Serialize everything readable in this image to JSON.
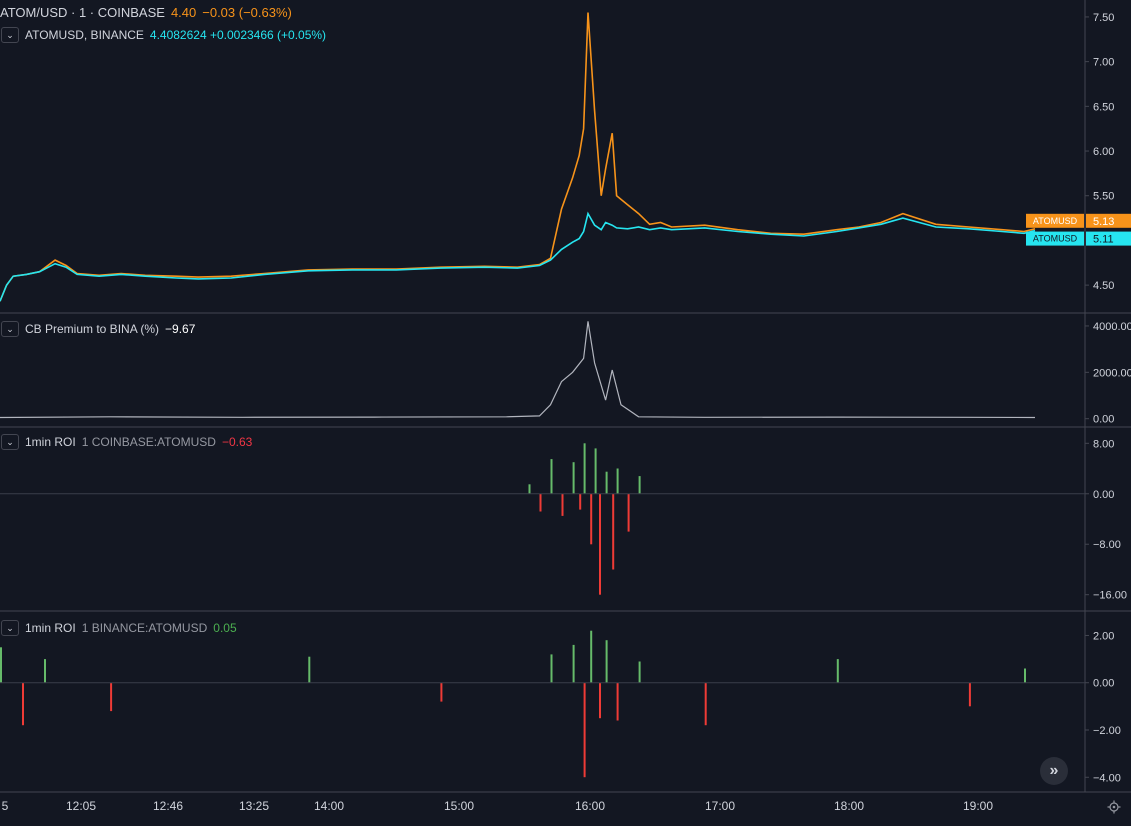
{
  "main_pane": {
    "symbol_title": "ATOM/USD · 1 · COINBASE",
    "last_price": "4.40",
    "change": "−0.03 (−0.63%)",
    "compare_label": "ATOMUSD, BINANCE",
    "compare_values": "4.4082624 +0.0023466 (+0.05%)",
    "price_tag_coinbase": "ATOMUSD",
    "price_tag_coinbase_value": "5.13",
    "price_tag_binance": "ATOMUSD",
    "price_tag_binance_value": "5.11",
    "y_ticks": [
      "7.50",
      "7.00",
      "6.50",
      "6.00",
      "5.50",
      "4.50"
    ]
  },
  "premium_pane": {
    "label": "CB Premium to BINA (%)",
    "value": "−9.67",
    "y_ticks": [
      "4000.00",
      "2000.00",
      "0.00"
    ]
  },
  "roi_coinbase_pane": {
    "label": "1min ROI",
    "source": "1 COINBASE:ATOMUSD",
    "value": "−0.63",
    "y_ticks": [
      "8.00",
      "0.00",
      "−8.00",
      "−16.00"
    ]
  },
  "roi_binance_pane": {
    "label": "1min ROI",
    "source": "1 BINANCE:ATOMUSD",
    "value": "0.05",
    "y_ticks": [
      "2.00",
      "0.00",
      "−2.00",
      "−4.00"
    ]
  },
  "time_axis": {
    "labels": [
      "5",
      "12:05",
      "12:46",
      "13:25",
      "14:00",
      "15:00",
      "16:00",
      "17:00",
      "18:00",
      "19:00"
    ]
  },
  "colors": {
    "background": "#131722",
    "coinbase_line": "#f7931a",
    "binance_line": "#26e5f0",
    "premium_line": "#b2b5be",
    "roi_up": "#66bb6a",
    "roi_down": "#ef3b36",
    "pane_border": "#434651",
    "text": "#d1d4dc",
    "muted_text": "#9598a1",
    "positive_text": "#4caf50",
    "negative_text": "#f23645"
  },
  "chart_data": [
    {
      "type": "line",
      "x": [
        "11:40",
        "11:43",
        "11:46",
        "11:52",
        "11:58",
        "12:05",
        "12:10",
        "12:15",
        "12:25",
        "12:35",
        "12:46",
        "13:00",
        "13:10",
        "13:25",
        "13:40",
        "14:00",
        "14:20",
        "14:40",
        "15:00",
        "15:20",
        "15:35",
        "15:45",
        "15:50",
        "15:55",
        "16:00",
        "16:03",
        "16:05",
        "16:07",
        "16:10",
        "16:13",
        "16:15",
        "16:18",
        "16:20",
        "16:25",
        "16:30",
        "16:35",
        "16:40",
        "16:45",
        "17:00",
        "17:15",
        "17:30",
        "17:45",
        "18:00",
        "18:10",
        "18:20",
        "18:30",
        "18:45",
        "19:00",
        "19:15",
        "19:25",
        "19:30"
      ],
      "ylim": [
        4.3,
        7.6
      ],
      "series": [
        {
          "name": "ATOMUSD",
          "values": [
            4.32,
            4.5,
            4.6,
            4.62,
            4.65,
            4.78,
            4.72,
            4.63,
            4.61,
            4.63,
            4.61,
            4.6,
            4.59,
            4.6,
            4.63,
            4.67,
            4.68,
            4.68,
            4.7,
            4.71,
            4.7,
            4.73,
            4.8,
            5.35,
            5.7,
            5.95,
            6.25,
            7.55,
            6.45,
            5.5,
            5.8,
            6.2,
            5.5,
            5.4,
            5.3,
            5.18,
            5.2,
            5.15,
            5.17,
            5.12,
            5.08,
            5.07,
            5.12,
            5.15,
            5.2,
            5.3,
            5.18,
            5.15,
            5.12,
            5.1,
            5.13
          ]
        },
        {
          "name": "ATOMUSD",
          "values": [
            4.32,
            4.5,
            4.6,
            4.62,
            4.65,
            4.74,
            4.7,
            4.62,
            4.6,
            4.62,
            4.6,
            4.58,
            4.57,
            4.58,
            4.62,
            4.66,
            4.67,
            4.67,
            4.69,
            4.7,
            4.69,
            4.72,
            4.78,
            4.9,
            4.98,
            5.02,
            5.1,
            5.3,
            5.17,
            5.12,
            5.2,
            5.17,
            5.14,
            5.13,
            5.15,
            5.12,
            5.14,
            5.12,
            5.14,
            5.1,
            5.07,
            5.05,
            5.1,
            5.14,
            5.18,
            5.25,
            5.15,
            5.13,
            5.1,
            5.08,
            5.11
          ]
        }
      ]
    },
    {
      "type": "line",
      "x": [
        "11:40",
        "12:30",
        "13:30",
        "14:30",
        "15:30",
        "15:45",
        "15:50",
        "15:55",
        "16:00",
        "16:05",
        "16:07",
        "16:10",
        "16:15",
        "16:18",
        "16:22",
        "16:30",
        "17:00",
        "18:00",
        "19:00",
        "19:30"
      ],
      "ylim": [
        -100,
        4300
      ],
      "series": [
        {
          "name": "CB Premium to BINA (%)",
          "values": [
            50,
            80,
            60,
            70,
            80,
            120,
            600,
            1600,
            2000,
            2600,
            4200,
            2400,
            800,
            2100,
            600,
            80,
            60,
            70,
            60,
            50
          ]
        }
      ]
    },
    {
      "type": "bar",
      "x": [
        "15:40",
        "15:45",
        "15:50",
        "15:55",
        "16:00",
        "16:03",
        "16:05",
        "16:08",
        "16:10",
        "16:12",
        "16:15",
        "16:18",
        "16:20",
        "16:25",
        "16:30"
      ],
      "ylim": [
        -17,
        9
      ],
      "series": [
        {
          "name": "1 COINBASE:ATOMUSD",
          "values": [
            1.5,
            -2.8,
            5.5,
            -3.5,
            5.0,
            -2.5,
            8.0,
            -8.0,
            7.2,
            -16.0,
            3.5,
            -12.0,
            4.0,
            -6.0,
            2.8
          ]
        }
      ]
    },
    {
      "type": "bar",
      "x": [
        "11:40",
        "11:50",
        "12:00",
        "12:30",
        "14:00",
        "15:00",
        "15:50",
        "16:00",
        "16:05",
        "16:08",
        "16:12",
        "16:15",
        "16:20",
        "16:30",
        "17:00",
        "18:00",
        "19:00",
        "19:25"
      ],
      "ylim": [
        -4.2,
        2.4
      ],
      "series": [
        {
          "name": "1 BINANCE:ATOMUSD",
          "values": [
            1.5,
            -1.8,
            1.0,
            -1.2,
            1.1,
            -0.8,
            1.2,
            1.6,
            -4.0,
            2.2,
            -1.5,
            1.8,
            -1.6,
            0.9,
            -1.8,
            1.0,
            -1.0,
            0.6
          ]
        }
      ]
    }
  ]
}
